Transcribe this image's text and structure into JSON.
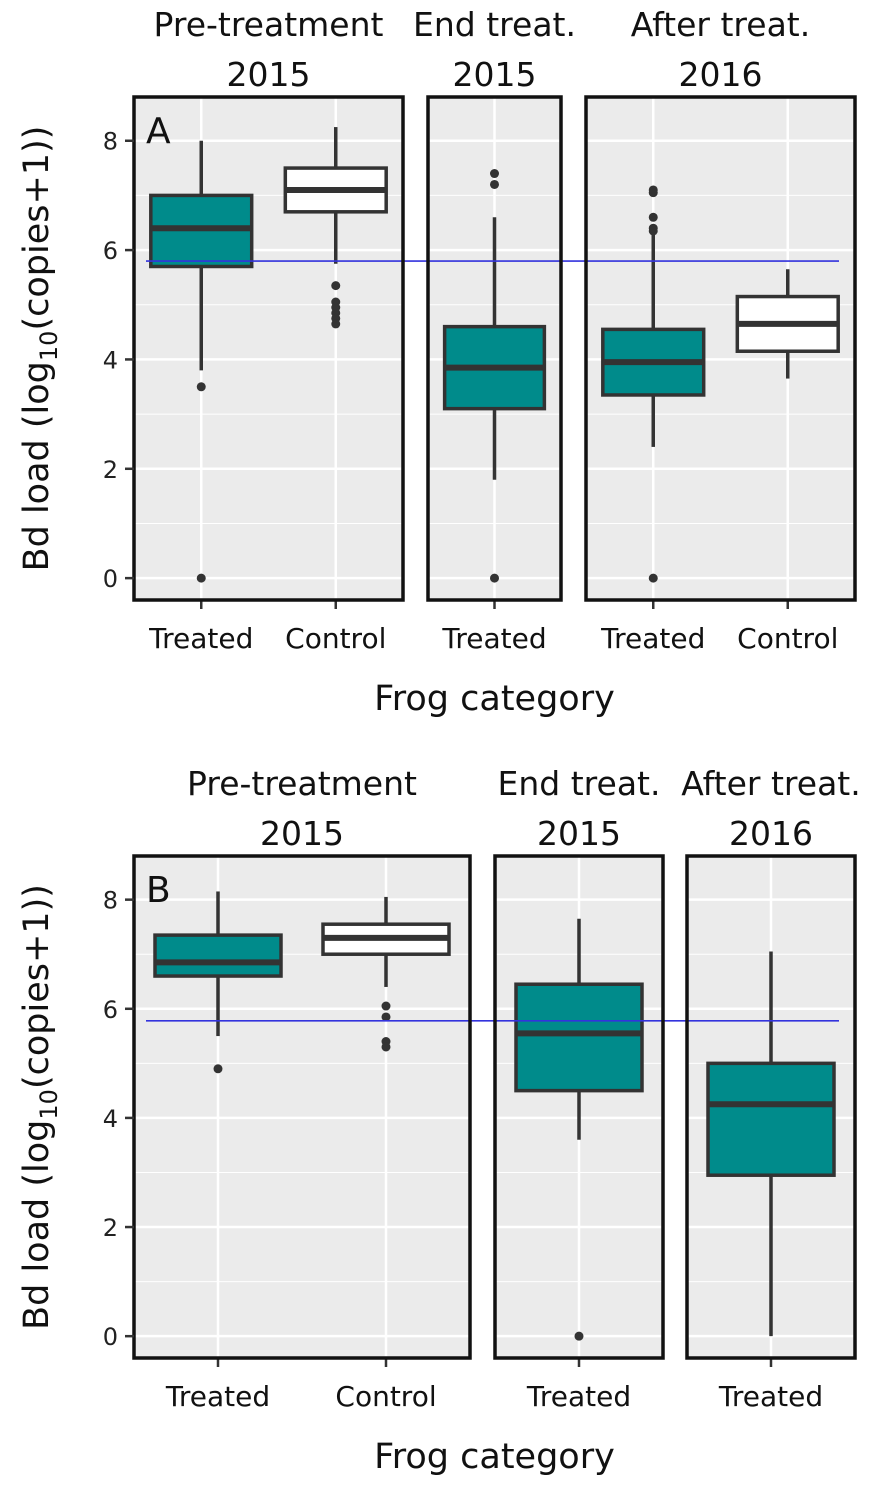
{
  "chart_data": [
    {
      "type": "boxplot",
      "panel_label": "A",
      "ylabel": "Bd load (log10(copies+1))",
      "ylabel_pre": "Bd load (log",
      "ylabel_sub": "10",
      "ylabel_post": "(copies+1))",
      "xlabel": "Frog category",
      "ylim": [
        -0.4,
        8.8
      ],
      "yticks": [
        0,
        2,
        4,
        6,
        8
      ],
      "yticks_labels": [
        "0",
        "2",
        "4",
        "6",
        "8"
      ],
      "reference_line": 5.8,
      "reference_color": "#3333dd",
      "colors": {
        "Treated": "#008B8B",
        "Control": "#ffffff"
      },
      "facets": [
        {
          "title": [
            "Pre-treatment",
            "2015"
          ],
          "categories": [
            "Treated",
            "Control"
          ],
          "boxes": [
            {
              "category": "Treated",
              "q1": 5.7,
              "median": 6.4,
              "q3": 7.0,
              "whisker_low": 3.8,
              "whisker_high": 8.0,
              "outliers": [
                3.5,
                0.0
              ]
            },
            {
              "category": "Control",
              "q1": 6.7,
              "median": 7.1,
              "q3": 7.5,
              "whisker_low": 5.75,
              "whisker_high": 8.25,
              "outliers": [
                5.35,
                5.05,
                4.95,
                4.85,
                4.75,
                4.65
              ]
            }
          ]
        },
        {
          "title": [
            "End treat.",
            "2015"
          ],
          "categories": [
            "Treated"
          ],
          "boxes": [
            {
              "category": "Treated",
              "q1": 3.1,
              "median": 3.85,
              "q3": 4.6,
              "whisker_low": 1.8,
              "whisker_high": 6.6,
              "outliers": [
                7.4,
                7.2,
                0.0
              ]
            }
          ]
        },
        {
          "title": [
            "After treat.",
            "2016"
          ],
          "categories": [
            "Treated",
            "Control"
          ],
          "boxes": [
            {
              "category": "Treated",
              "q1": 3.35,
              "median": 3.95,
              "q3": 4.55,
              "whisker_low": 2.4,
              "whisker_high": 6.3,
              "outliers": [
                7.1,
                7.05,
                6.6,
                6.4,
                6.35,
                0.0
              ]
            },
            {
              "category": "Control",
              "q1": 4.15,
              "median": 4.65,
              "q3": 5.15,
              "whisker_low": 3.65,
              "whisker_high": 5.65,
              "outliers": []
            }
          ]
        }
      ]
    },
    {
      "type": "boxplot",
      "panel_label": "B",
      "ylabel": "Bd load (log10(copies+1))",
      "ylabel_pre": "Bd load (log",
      "ylabel_sub": "10",
      "ylabel_post": "(copies+1))",
      "xlabel": "Frog category",
      "ylim": [
        -0.4,
        8.8
      ],
      "yticks": [
        0,
        2,
        4,
        6,
        8
      ],
      "yticks_labels": [
        "0",
        "2",
        "4",
        "6",
        "8"
      ],
      "reference_line": 5.78,
      "reference_color": "#3333dd",
      "colors": {
        "Treated": "#008B8B",
        "Control": "#ffffff"
      },
      "facets": [
        {
          "title": [
            "Pre-treatment",
            "2015"
          ],
          "categories": [
            "Treated",
            "Control"
          ],
          "boxes": [
            {
              "category": "Treated",
              "q1": 6.6,
              "median": 6.85,
              "q3": 7.35,
              "whisker_low": 5.5,
              "whisker_high": 8.15,
              "outliers": [
                4.9
              ]
            },
            {
              "category": "Control",
              "q1": 7.0,
              "median": 7.3,
              "q3": 7.55,
              "whisker_low": 6.4,
              "whisker_high": 8.05,
              "outliers": [
                6.05,
                5.85,
                5.4,
                5.3
              ]
            }
          ]
        },
        {
          "title": [
            "End treat.",
            "2015"
          ],
          "categories": [
            "Treated"
          ],
          "boxes": [
            {
              "category": "Treated",
              "q1": 4.5,
              "median": 5.55,
              "q3": 6.45,
              "whisker_low": 3.6,
              "whisker_high": 7.65,
              "outliers": [
                0.0
              ]
            }
          ]
        },
        {
          "title": [
            "After treat.",
            "2016"
          ],
          "categories": [
            "Treated"
          ],
          "boxes": [
            {
              "category": "Treated",
              "q1": 2.95,
              "median": 4.25,
              "q3": 5.0,
              "whisker_low": 0.0,
              "whisker_high": 7.05,
              "outliers": []
            }
          ]
        }
      ]
    }
  ]
}
